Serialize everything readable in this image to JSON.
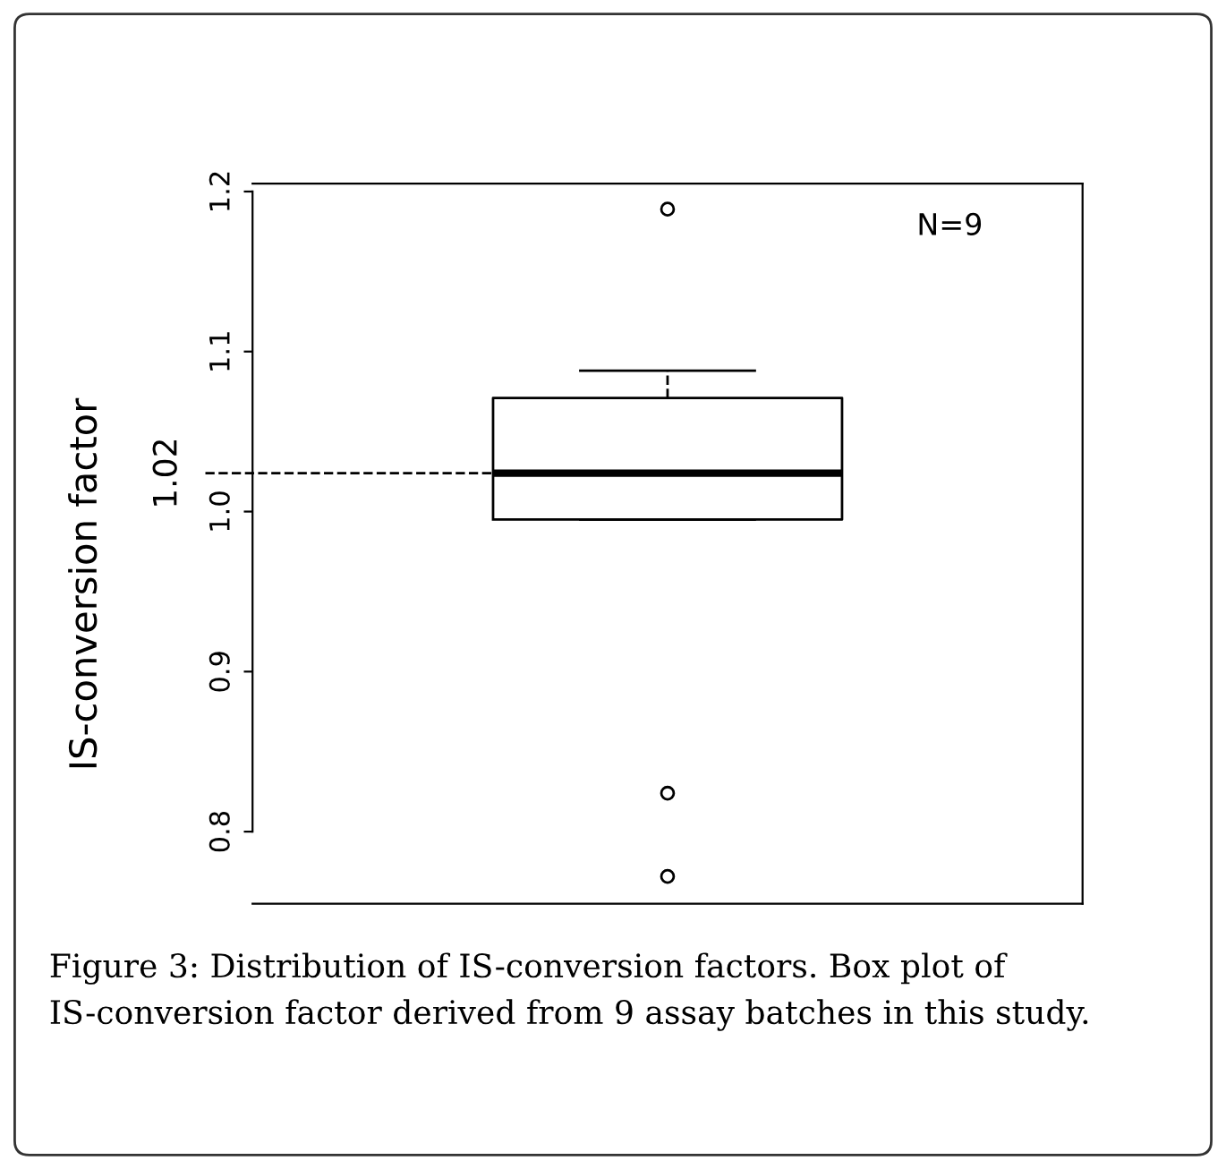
{
  "chart_data": {
    "type": "box",
    "ylabel": "IS-conversion factor",
    "categories": [
      null
    ],
    "boxes": [
      {
        "low": 0.995,
        "q1": 0.995,
        "median": 1.024,
        "q3": 1.071,
        "high": 1.088,
        "outliers": [
          1.189,
          0.824,
          0.772
        ]
      }
    ],
    "ylim": [
      0.755,
      1.205
    ],
    "yticks": [
      0.8,
      0.9,
      {
        "value": 1.0,
        "label": "1.0"
      },
      1.1,
      1.2
    ],
    "ref_lines": [
      {
        "axis": "y",
        "value": 1.024,
        "label": "1.02",
        "line_style": "dashed",
        "color": "#000000"
      }
    ],
    "annotations": [
      "N=9",
      "Figure 3: Distribution of IS-conversion factors. Box plot of IS-conversion factor derived from 9 assay batches in this study."
    ],
    "grid": false
  }
}
